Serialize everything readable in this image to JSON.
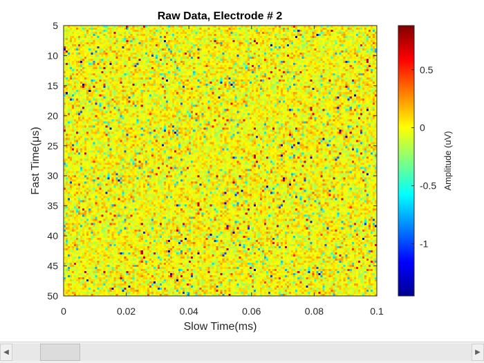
{
  "chart_data": {
    "type": "heatmap",
    "title": "Raw Data, Electrode # 2",
    "xlabel": "Slow Time(ms)",
    "ylabel": "Fast Time(μs)",
    "xlim": [
      0,
      0.1
    ],
    "ylim": [
      5,
      50
    ],
    "y_reversed": true,
    "x_ticks": [
      0,
      0.02,
      0.04,
      0.06,
      0.08,
      0.1
    ],
    "x_tick_labels": [
      "0",
      "0.02",
      "0.04",
      "0.06",
      "0.08",
      "0.1"
    ],
    "y_ticks": [
      5,
      10,
      15,
      20,
      25,
      30,
      35,
      40,
      45,
      50
    ],
    "y_tick_labels": [
      "5",
      "10",
      "15",
      "20",
      "25",
      "30",
      "35",
      "40",
      "45",
      "50"
    ],
    "colorbar": {
      "label": "Amplitude (uV)",
      "clim": [
        -1.45,
        0.88
      ],
      "ticks": [
        0.5,
        0,
        -0.5,
        -1
      ],
      "tick_labels": [
        "0.5",
        "0",
        "-0.5",
        "-1"
      ],
      "colormap": "jet"
    },
    "values_description_visible": "dense noise field, mostly near 0 (yellow) with scattered positive (orange/red) and negative (cyan/blue) samples",
    "grid": false
  },
  "colors": {
    "axis": "#262626",
    "background": "#ffffff"
  },
  "scrollbar": {
    "left_arrow": "◀",
    "right_arrow": "▶",
    "thumb_position_fraction": 0.0
  }
}
